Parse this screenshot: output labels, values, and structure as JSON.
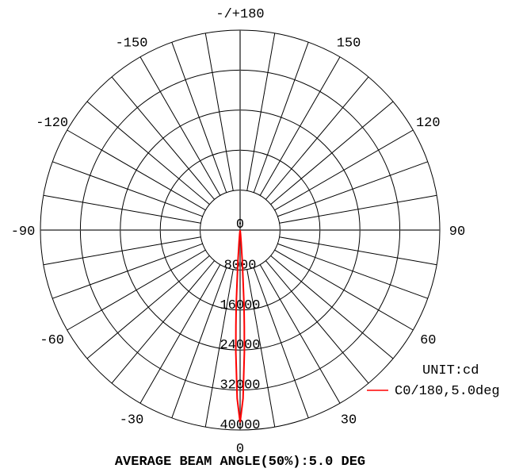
{
  "chart_data": {
    "type": "polar",
    "unit_label": "UNIT:cd",
    "footer": "AVERAGE BEAM ANGLE(50%):5.0 DEG",
    "angle_labels": [
      {
        "angle": 180,
        "text": "-/+180"
      },
      {
        "angle": 150,
        "text": "150"
      },
      {
        "angle": -150,
        "text": "-150"
      },
      {
        "angle": 120,
        "text": "120"
      },
      {
        "angle": -120,
        "text": "-120"
      },
      {
        "angle": 90,
        "text": "90"
      },
      {
        "angle": -90,
        "text": "-90"
      },
      {
        "angle": 60,
        "text": "60"
      },
      {
        "angle": -60,
        "text": "-60"
      },
      {
        "angle": 30,
        "text": "30"
      },
      {
        "angle": -30,
        "text": "-30"
      },
      {
        "angle": 0,
        "text": "0"
      }
    ],
    "radial_ticks": [
      "0",
      "8000",
      "16000",
      "24000",
      "32000",
      "40000"
    ],
    "rmax": 40000,
    "angle_grid_step": 10,
    "grid": true,
    "legend_placement": "bottom-right",
    "series": [
      {
        "name": "C0/180,5.0deg",
        "color": "#ff0000",
        "angles": [
          -10,
          -8,
          -6,
          -5,
          -4,
          -3,
          -2.5,
          -2,
          -1,
          0,
          1,
          2,
          2.5,
          3,
          4,
          5,
          6,
          8,
          10
        ],
        "values": [
          0,
          17,
          716,
          2400,
          6700,
          14900,
          19250,
          24400,
          33700,
          38500,
          33700,
          24400,
          19250,
          14900,
          6700,
          2400,
          716,
          17,
          0
        ]
      }
    ]
  }
}
